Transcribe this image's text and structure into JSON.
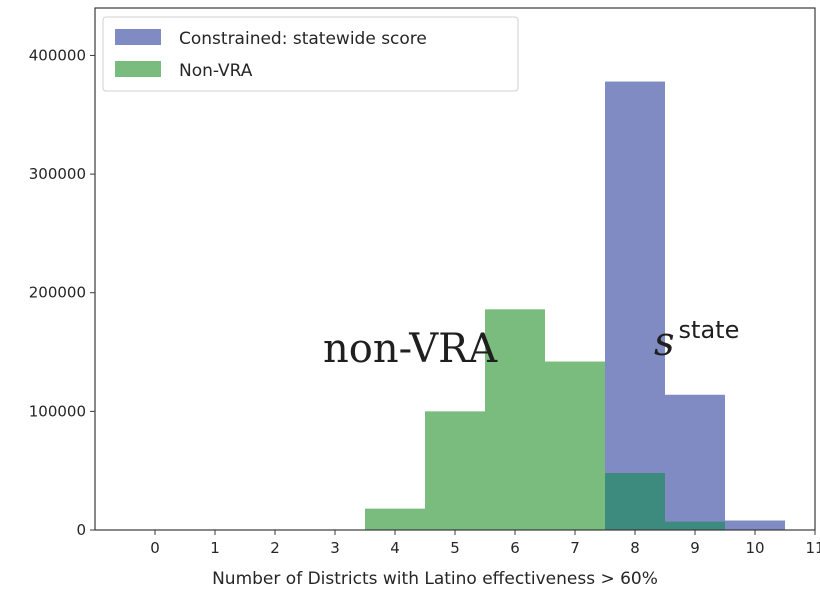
{
  "chart_data": {
    "type": "bar",
    "title": "",
    "xlabel": "Number of Districts with Latino effectiveness > 60%",
    "ylabel": "",
    "xlim": [
      -1,
      11
    ],
    "ylim": [
      0,
      440000
    ],
    "xticks": [
      0,
      1,
      2,
      3,
      4,
      5,
      6,
      7,
      8,
      9,
      10,
      11
    ],
    "yticks": [
      0,
      100000,
      200000,
      300000,
      400000
    ],
    "grid": false,
    "legend_position": "upper-left",
    "overlap_color": "#3d8a7e",
    "series": [
      {
        "name": "Constrained: statewide score",
        "color": "#7f8bc2",
        "x": [
          7.5,
          8.5,
          9.5
        ],
        "width": 1,
        "values": [
          378000,
          114000,
          8000
        ]
      },
      {
        "name": "Non-VRA",
        "color": "#79bc7d",
        "x": [
          3.5,
          4.5,
          5.5,
          6.5,
          7.5,
          8.5
        ],
        "width": 1,
        "values": [
          18000,
          100000,
          186000,
          142000,
          48000,
          7000
        ]
      }
    ],
    "annotations": [
      {
        "text": "non-VRA",
        "x": 3.8,
        "y": 160000
      },
      {
        "base": "s",
        "superscript": "state",
        "x": 8.65,
        "y": 215000
      }
    ]
  }
}
